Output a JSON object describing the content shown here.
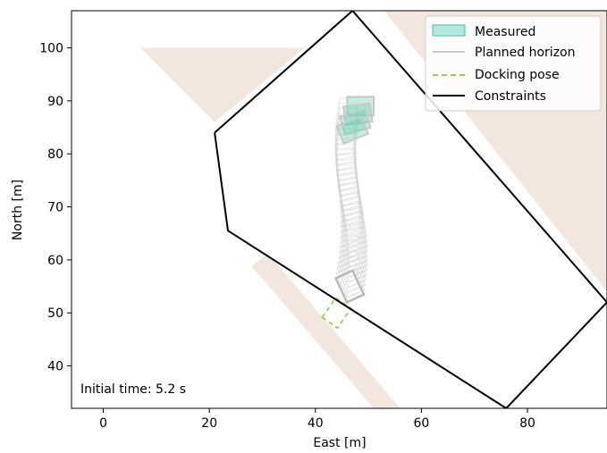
{
  "chart_data": {
    "type": "line",
    "xlabel": "East [m]",
    "ylabel": "North [m]",
    "xlim": [
      -6,
      95
    ],
    "ylim": [
      32,
      107
    ],
    "xticks": [
      0,
      20,
      40,
      60,
      80
    ],
    "yticks": [
      40,
      50,
      60,
      70,
      80,
      90,
      100
    ],
    "annotation": "Initial time: 5.2 s",
    "legend_position": "top-right",
    "legend": [
      {
        "key": "measured",
        "label": "Measured",
        "color": "#3fbfa0"
      },
      {
        "key": "planned",
        "label": "Planned horizon",
        "color": "#b4b4b4"
      },
      {
        "key": "docking",
        "label": "Docking pose",
        "color": "#9acd5a"
      },
      {
        "key": "constraints",
        "label": "Constraints",
        "color": "#000000"
      }
    ],
    "obstacle_color": "#f3e6df",
    "obstacles": [
      [
        [
          7,
          100
        ],
        [
          38,
          100
        ],
        [
          21,
          86
        ]
      ],
      [
        [
          28,
          58.8
        ],
        [
          31,
          61.3
        ],
        [
          56,
          32
        ],
        [
          51,
          32
        ]
      ],
      [
        [
          53,
          107
        ],
        [
          95,
          107
        ],
        [
          95,
          54
        ]
      ]
    ],
    "constraints": [
      [
        21,
        84
      ],
      [
        23.5,
        65.5
      ],
      [
        76,
        32
      ],
      [
        76,
        32
      ],
      [
        95,
        52
      ],
      [
        95,
        52
      ],
      [
        47,
        107
      ],
      [
        21,
        84
      ]
    ],
    "docking_pose": {
      "cx": 44,
      "cy": 50,
      "length": 4.5,
      "width": 3.5,
      "heading_deg": 35
    },
    "planned_horizon": {
      "start": [
        46.5,
        55
      ],
      "end": [
        46.5,
        88
      ],
      "steps": 36
    },
    "measured_poses": [
      {
        "cx": 48.5,
        "cy": 89,
        "heading_deg": 0
      },
      {
        "cx": 48,
        "cy": 87.5,
        "heading_deg": 8
      },
      {
        "cx": 47.5,
        "cy": 86,
        "heading_deg": 15
      },
      {
        "cx": 47,
        "cy": 84.5,
        "heading_deg": 22
      }
    ]
  }
}
